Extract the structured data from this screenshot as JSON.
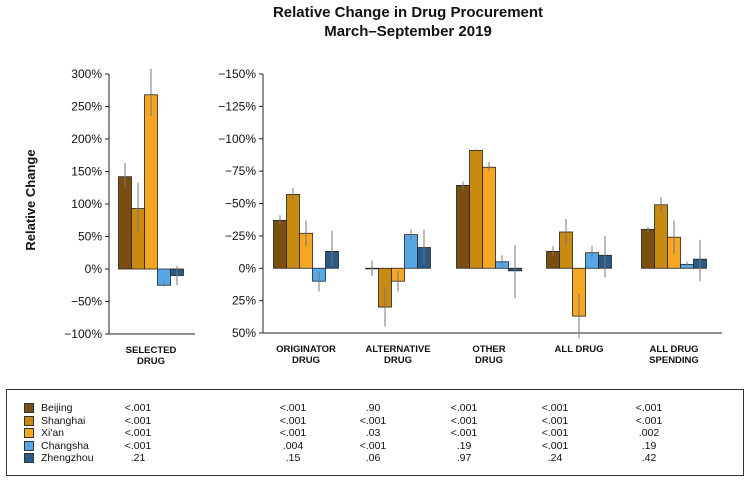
{
  "chart_data": {
    "type": "bar",
    "title": "Relative Change in Drug Procurement",
    "subtitle": "March–September 2019",
    "ylabel": "Relative Change",
    "series": [
      {
        "name": "Beijing",
        "color": "#7a4e10"
      },
      {
        "name": "Shanghai",
        "color": "#c98a12"
      },
      {
        "name": "Xi'an",
        "color": "#f5a623"
      },
      {
        "name": "Changsha",
        "color": "#56a7e6"
      },
      {
        "name": "Zhengzhou",
        "color": "#2a5a86"
      }
    ],
    "panels": [
      {
        "name": "left",
        "ylim": [
          -100,
          300
        ],
        "ticks": [
          300,
          250,
          200,
          150,
          100,
          50,
          0,
          -50,
          -100
        ],
        "tick_labels": [
          "300%",
          "250%",
          "200%",
          "150%",
          "100%",
          "50%",
          "0%",
          "−50%",
          "−100%"
        ],
        "categories": [
          {
            "label": [
              "SELECTED",
              "DRUG"
            ],
            "values": [
              142,
              93,
              268,
              -25,
              -10
            ],
            "err": [
              [
                125,
                163
              ],
              [
                57,
                133
              ],
              [
                235,
                308
              ],
              [
                -27,
                -20
              ],
              [
                -25,
                5
              ]
            ]
          }
        ]
      },
      {
        "name": "right",
        "ylim": [
          -150,
          50
        ],
        "inverted": true,
        "ticks": [
          -150,
          -125,
          -100,
          -75,
          -50,
          -25,
          0,
          25,
          50
        ],
        "tick_labels": [
          "−150%",
          "−125%",
          "−100%",
          "−75%",
          "−50%",
          "−25%",
          "0%",
          "25%",
          "50%"
        ],
        "categories": [
          {
            "label": [
              "ORIGINATOR",
              "DRUG"
            ],
            "values": [
              -37,
              -57,
              -27,
              10,
              -13
            ],
            "err": [
              [
                -34,
                -41
              ],
              [
                -52,
                -62
              ],
              [
                -17,
                -37
              ],
              [
                3,
                18
              ],
              [
                -2,
                -29
              ]
            ]
          },
          {
            "label": [
              "ALTERNATIVE",
              "DRUG"
            ],
            "values": [
              0,
              30,
              10,
              -26,
              -16
            ],
            "err": [
              [
                -6,
                6
              ],
              [
                15,
                45
              ],
              [
                2,
                18
              ],
              [
                -22,
                -30
              ],
              [
                -3,
                -30
              ]
            ]
          },
          {
            "label": [
              "OTHER",
              "DRUG"
            ],
            "values": [
              -64,
              -91,
              -78,
              -5,
              2
            ],
            "err": [
              [
                -61,
                -67
              ],
              [
                -90,
                -92
              ],
              [
                -75,
                -82
              ],
              [
                -2,
                -10
              ],
              [
                23,
                -18
              ]
            ]
          },
          {
            "label": [
              "ALL DRUG"
            ],
            "values": [
              -13,
              -28,
              37,
              -12,
              -10
            ],
            "err": [
              [
                -9,
                -17
              ],
              [
                -18,
                -38
              ],
              [
                20,
                54
              ],
              [
                -8,
                -17
              ],
              [
                7,
                -25
              ]
            ]
          },
          {
            "label": [
              "ALL DRUG",
              "SPENDING"
            ],
            "values": [
              -30,
              -49,
              -24,
              -3,
              -7
            ],
            "err": [
              [
                -28,
                -32
              ],
              [
                -43,
                -55
              ],
              [
                -11,
                -37
              ],
              [
                -2,
                -5
              ],
              [
                10,
                -22
              ]
            ]
          }
        ]
      }
    ],
    "table": {
      "rows": [
        {
          "city": "Beijing",
          "p": [
            "<.001",
            "<.001",
            ".90",
            "<.001",
            "<.001",
            "<.001"
          ]
        },
        {
          "city": "Shanghai",
          "p": [
            "<.001",
            "<.001",
            "<.001",
            "<.001",
            "<.001",
            "<.001"
          ]
        },
        {
          "city": "Xi'an",
          "p": [
            "<.001",
            "<.001",
            ".03",
            "<.001",
            "<.001",
            ".002"
          ]
        },
        {
          "city": "Changsha",
          "p": [
            "<.001",
            ".004",
            "<.001",
            ".19",
            "<.001",
            ".19"
          ]
        },
        {
          "city": "Zhengzhou",
          "p": [
            ".21",
            ".15",
            ".06",
            ".97",
            ".24",
            ".42"
          ]
        }
      ]
    }
  }
}
